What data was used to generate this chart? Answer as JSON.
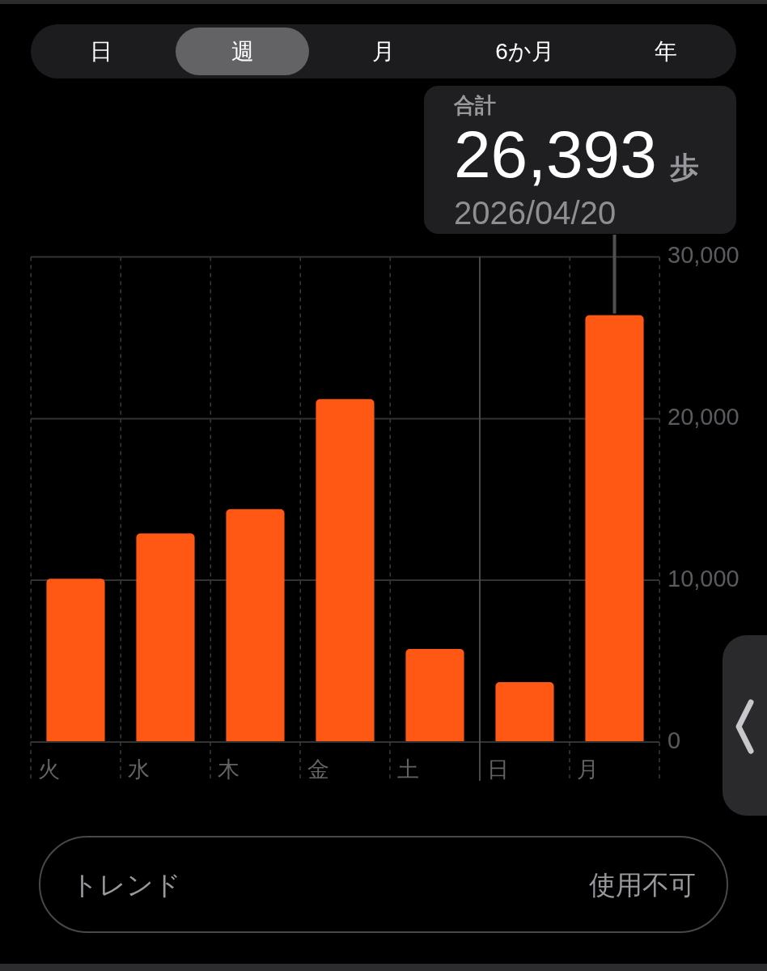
{
  "chart_data": {
    "type": "bar",
    "categories": [
      "火",
      "水",
      "木",
      "金",
      "土",
      "日",
      "月"
    ],
    "values": [
      10100,
      12900,
      14400,
      21200,
      5750,
      3700,
      26393
    ],
    "color": "#ff5714",
    "ylim": [
      0,
      30000
    ],
    "yticks": [
      0,
      {
        "value": 10000,
        "label": "10,000"
      },
      {
        "value": 20000,
        "label": "20,000"
      },
      {
        "value": 30000,
        "label": "30,000"
      }
    ],
    "grid": true,
    "ref_lines": [
      {
        "axis": "x",
        "value": "日",
        "color": "#48484a",
        "line_style": "solid"
      }
    ],
    "value_labels": [
      null,
      null,
      null,
      null,
      null,
      null,
      "26,393"
    ],
    "annotations": [
      "日",
      "週",
      "月",
      "6か月",
      "年",
      "合計",
      "歩",
      {
        "text": "2026/04/20",
        "x": "月",
        "y": 26393
      },
      "トレンド",
      "使用不可"
    ]
  }
}
